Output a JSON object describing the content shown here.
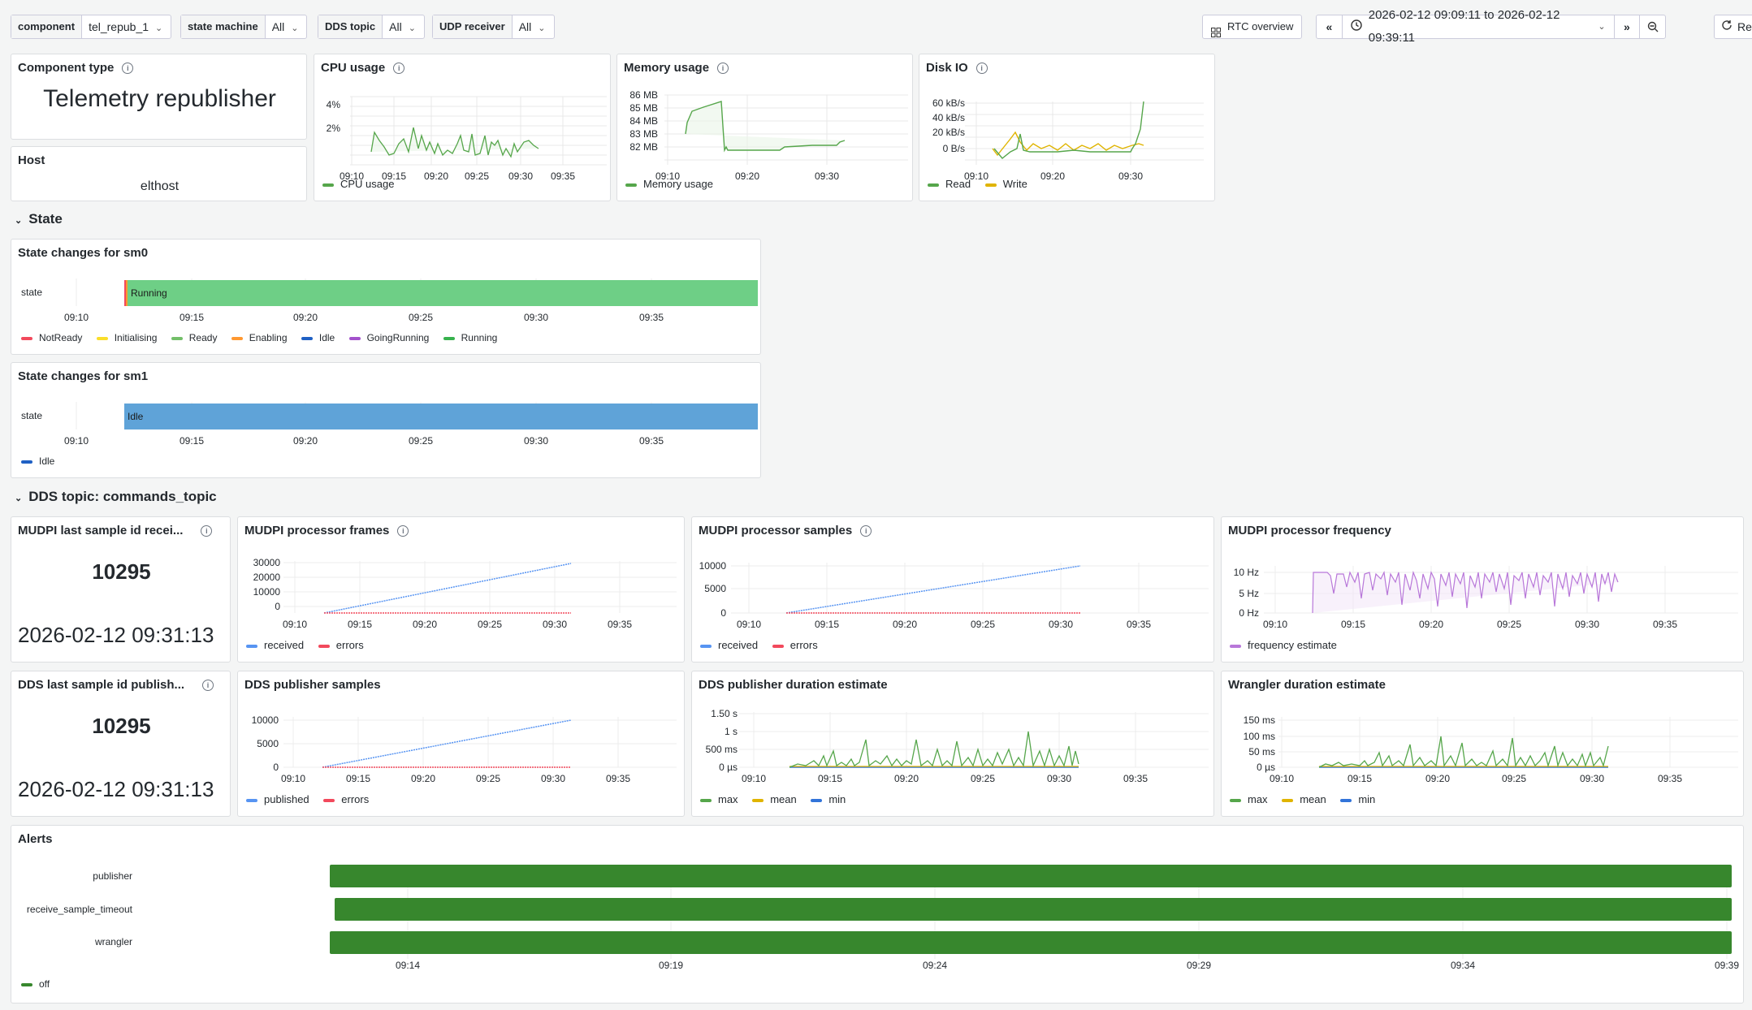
{
  "toolbar": {
    "vars": [
      {
        "label": "component",
        "value": "tel_repub_1"
      },
      {
        "label": "state machine",
        "value": "All"
      },
      {
        "label": "DDS topic",
        "value": "All"
      },
      {
        "label": "UDP receiver",
        "value": "All"
      }
    ],
    "rtc_button": "RTC overview",
    "time_range": "2026-02-12 09:09:11 to 2026-02-12 09:39:11",
    "refresh_label": "Re"
  },
  "stats": {
    "component_type": {
      "title": "Component type",
      "value": "Telemetry republisher"
    },
    "host": {
      "title": "Host",
      "value": "elthost"
    }
  },
  "sections": {
    "state": "State",
    "dds": "DDS topic: commands_topic"
  },
  "panels": {
    "cpu": {
      "title": "CPU usage"
    },
    "mem": {
      "title": "Memory usage"
    },
    "disk": {
      "title": "Disk IO"
    },
    "sm0": {
      "title": "State changes for sm0"
    },
    "sm1": {
      "title": "State changes for sm1"
    },
    "mudpi_last": {
      "title": "MUDPI last sample id recei...",
      "value": "10295",
      "time": "2026-02-12 09:31:13"
    },
    "dds_last": {
      "title": "DDS last sample id publish...",
      "value": "10295",
      "time": "2026-02-12 09:31:13"
    },
    "frames": {
      "title": "MUDPI processor frames"
    },
    "samples": {
      "title": "MUDPI processor samples"
    },
    "freq": {
      "title": "MUDPI processor frequency"
    },
    "pubsamples": {
      "title": "DDS publisher samples"
    },
    "pubdur": {
      "title": "DDS publisher duration estimate"
    },
    "wrangler": {
      "title": "Wrangler duration estimate"
    },
    "alerts": {
      "title": "Alerts"
    }
  },
  "chart_data": [
    {
      "id": "cpu",
      "type": "line",
      "x": [
        "09:10",
        "09:15",
        "09:20",
        "09:25",
        "09:30",
        "09:35"
      ],
      "yticks": [
        "2%",
        "4%"
      ],
      "series": [
        {
          "name": "CPU usage",
          "color": "#56a64b"
        }
      ],
      "approx_range": [
        1,
        4.5
      ]
    },
    {
      "id": "mem",
      "type": "line",
      "x": [
        "09:10",
        "09:20",
        "09:30"
      ],
      "yticks": [
        "82 MB",
        "83 MB",
        "84 MB",
        "85 MB",
        "86 MB"
      ],
      "series": [
        {
          "name": "Memory usage",
          "color": "#56a64b"
        }
      ]
    },
    {
      "id": "disk",
      "type": "line",
      "x": [
        "09:10",
        "09:20",
        "09:30"
      ],
      "yticks": [
        "0 B/s",
        "20 kB/s",
        "40 kB/s",
        "60 kB/s"
      ],
      "series": [
        {
          "name": "Read",
          "color": "#56a64b"
        },
        {
          "name": "Write",
          "color": "#e0b400"
        }
      ]
    },
    {
      "id": "sm0",
      "type": "state-timeline",
      "row": "state",
      "x": [
        "09:10",
        "09:15",
        "09:20",
        "09:25",
        "09:30",
        "09:35"
      ],
      "current": "Running",
      "legend": [
        {
          "name": "NotReady",
          "color": "#f2495c"
        },
        {
          "name": "Initialising",
          "color": "#fade2a"
        },
        {
          "name": "Ready",
          "color": "#73bf69"
        },
        {
          "name": "Enabling",
          "color": "#ff9830"
        },
        {
          "name": "Idle",
          "color": "#1f60c4"
        },
        {
          "name": "GoingRunning",
          "color": "#a352cc"
        },
        {
          "name": "Running",
          "color": "#37b24d"
        }
      ]
    },
    {
      "id": "sm1",
      "type": "state-timeline",
      "row": "state",
      "x": [
        "09:10",
        "09:15",
        "09:20",
        "09:25",
        "09:30",
        "09:35"
      ],
      "current": "Idle",
      "legend": [
        {
          "name": "Idle",
          "color": "#1f60c4"
        }
      ]
    },
    {
      "id": "frames",
      "type": "line",
      "x": [
        "09:10",
        "09:15",
        "09:20",
        "09:25",
        "09:30",
        "09:35"
      ],
      "yticks": [
        "0",
        "10000",
        "20000",
        "30000"
      ],
      "series": [
        {
          "name": "received",
          "color": "#5794f2",
          "end": 30000
        },
        {
          "name": "errors",
          "color": "#f2495c",
          "end": 0
        }
      ]
    },
    {
      "id": "samples",
      "type": "line",
      "x": [
        "09:10",
        "09:15",
        "09:20",
        "09:25",
        "09:30",
        "09:35"
      ],
      "yticks": [
        "0",
        "5000",
        "10000"
      ],
      "series": [
        {
          "name": "received",
          "color": "#5794f2",
          "end": 10000
        },
        {
          "name": "errors",
          "color": "#f2495c",
          "end": 0
        }
      ]
    },
    {
      "id": "freq",
      "type": "line",
      "x": [
        "09:10",
        "09:15",
        "09:20",
        "09:25",
        "09:30",
        "09:35"
      ],
      "yticks": [
        "0 Hz",
        "5 Hz",
        "10 Hz"
      ],
      "series": [
        {
          "name": "frequency estimate",
          "color": "#b877d9"
        }
      ]
    },
    {
      "id": "pubsamples",
      "type": "line",
      "x": [
        "09:10",
        "09:15",
        "09:20",
        "09:25",
        "09:30",
        "09:35"
      ],
      "yticks": [
        "0",
        "5000",
        "10000"
      ],
      "series": [
        {
          "name": "published",
          "color": "#5794f2",
          "end": 10000
        },
        {
          "name": "errors",
          "color": "#f2495c",
          "end": 0
        }
      ]
    },
    {
      "id": "pubdur",
      "type": "line",
      "x": [
        "09:10",
        "09:15",
        "09:20",
        "09:25",
        "09:30",
        "09:35"
      ],
      "yticks": [
        "0 µs",
        "500 ms",
        "1 s",
        "1.50 s"
      ],
      "series": [
        {
          "name": "max",
          "color": "#56a64b"
        },
        {
          "name": "mean",
          "color": "#e0b400"
        },
        {
          "name": "min",
          "color": "#3274d9"
        }
      ]
    },
    {
      "id": "wrangler",
      "type": "line",
      "x": [
        "09:10",
        "09:15",
        "09:20",
        "09:25",
        "09:30",
        "09:35"
      ],
      "yticks": [
        "0 µs",
        "50 ms",
        "100 ms",
        "150 ms"
      ],
      "series": [
        {
          "name": "max",
          "color": "#56a64b"
        },
        {
          "name": "mean",
          "color": "#e0b400"
        },
        {
          "name": "min",
          "color": "#3274d9"
        }
      ]
    },
    {
      "id": "alerts",
      "type": "state-timeline",
      "rows": [
        "publisher",
        "receive_sample_timeout",
        "wrangler"
      ],
      "x": [
        "09:14",
        "09:19",
        "09:24",
        "09:29",
        "09:34",
        "09:39"
      ],
      "legend": [
        {
          "name": "off",
          "color": "#37872d"
        }
      ]
    }
  ]
}
